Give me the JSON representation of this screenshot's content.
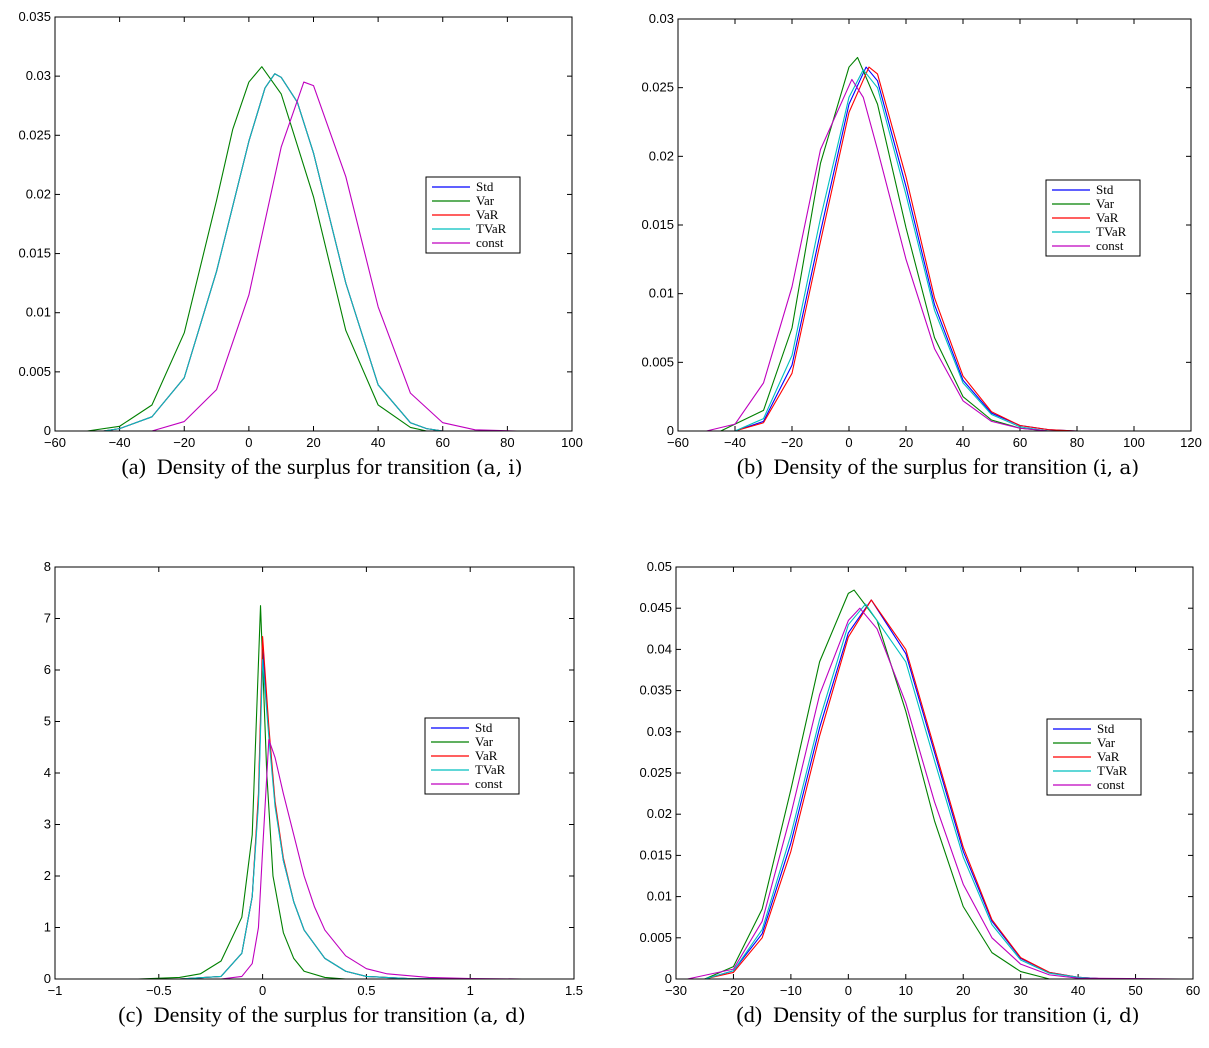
{
  "chart_data": [
    {
      "type": "line",
      "caption": {
        "prefix": "(a)  Density of the surplus for transition ",
        "math": "(a, i)"
      },
      "xlim": [
        -60,
        100
      ],
      "ylim": [
        0,
        0.035
      ],
      "xticks": [
        -60,
        -40,
        -20,
        0,
        20,
        40,
        60,
        80,
        100
      ],
      "xtick_labels": [
        "−60",
        "−40",
        "−20",
        "0",
        "20",
        "40",
        "60",
        "80",
        "100"
      ],
      "yticks": [
        0,
        0.005,
        0.01,
        0.015,
        0.02,
        0.025,
        0.03,
        0.035
      ],
      "ytick_labels": [
        "0",
        "0.005",
        "0.01",
        "0.015",
        "0.02",
        "0.025",
        "0.03",
        "0.035"
      ],
      "legend_position": "right",
      "series": [
        {
          "name": "Std",
          "color": "#0000ff",
          "peak_x": 8,
          "peak_y": 0.0302,
          "x": [
            -45,
            -40,
            -30,
            -20,
            -10,
            0,
            5,
            8,
            10,
            15,
            20,
            30,
            40,
            50,
            55,
            60
          ],
          "y": [
            0,
            0.0002,
            0.0012,
            0.0045,
            0.0135,
            0.0245,
            0.029,
            0.0302,
            0.0299,
            0.0278,
            0.0235,
            0.0125,
            0.0039,
            0.0007,
            0.0002,
            0
          ]
        },
        {
          "name": "Var",
          "color": "#008000",
          "peak_x": 4,
          "peak_y": 0.0308,
          "x": [
            -50,
            -40,
            -30,
            -20,
            -10,
            -5,
            0,
            4,
            10,
            20,
            30,
            40,
            50,
            55
          ],
          "y": [
            0,
            0.0004,
            0.0022,
            0.0083,
            0.0195,
            0.0255,
            0.0295,
            0.0308,
            0.0285,
            0.0198,
            0.0085,
            0.0022,
            0.0003,
            0
          ]
        },
        {
          "name": "VaR",
          "color": "#ff0000",
          "peak_x": 8,
          "peak_y": 0.0302,
          "x": [
            -45,
            -40,
            -30,
            -20,
            -10,
            0,
            5,
            8,
            10,
            15,
            20,
            30,
            40,
            50,
            55,
            60
          ],
          "y": [
            0,
            0.0002,
            0.0012,
            0.0045,
            0.0135,
            0.0245,
            0.029,
            0.0302,
            0.0299,
            0.0278,
            0.0235,
            0.0125,
            0.0039,
            0.0007,
            0.0002,
            0
          ]
        },
        {
          "name": "TVaR",
          "color": "#00bfbf",
          "peak_x": 8,
          "peak_y": 0.0302,
          "x": [
            -45,
            -40,
            -30,
            -20,
            -10,
            0,
            5,
            8,
            10,
            15,
            20,
            30,
            40,
            50,
            55,
            60
          ],
          "y": [
            0,
            0.0002,
            0.0012,
            0.0045,
            0.0135,
            0.0245,
            0.029,
            0.0302,
            0.0299,
            0.0278,
            0.0235,
            0.0125,
            0.0039,
            0.0007,
            0.0002,
            0
          ]
        },
        {
          "name": "const",
          "color": "#bf00bf",
          "peak_x": 17,
          "peak_y": 0.0295,
          "x": [
            -30,
            -20,
            -10,
            0,
            10,
            17,
            20,
            30,
            40,
            50,
            60,
            70,
            83
          ],
          "y": [
            0,
            0.0008,
            0.0035,
            0.0115,
            0.024,
            0.0295,
            0.0292,
            0.0215,
            0.0105,
            0.0032,
            0.0007,
            0.0001,
            0
          ]
        }
      ]
    },
    {
      "type": "line",
      "caption": {
        "prefix": "(b)  Density of the surplus for transition ",
        "math": "(i, a)"
      },
      "xlim": [
        -60,
        120
      ],
      "ylim": [
        0,
        0.03
      ],
      "xticks": [
        -60,
        -40,
        -20,
        0,
        20,
        40,
        60,
        80,
        100,
        120
      ],
      "xtick_labels": [
        "−60",
        "−40",
        "−20",
        "0",
        "20",
        "40",
        "60",
        "80",
        "100",
        "120"
      ],
      "yticks": [
        0,
        0.005,
        0.01,
        0.015,
        0.02,
        0.025,
        0.03
      ],
      "ytick_labels": [
        "0",
        "0.005",
        "0.01",
        "0.015",
        "0.02",
        "0.025",
        "0.03"
      ],
      "legend_position": "right",
      "series": [
        {
          "name": "Std",
          "color": "#0000ff",
          "peak_x": 6,
          "peak_y": 0.0265,
          "x": [
            -40,
            -30,
            -20,
            -10,
            0,
            6,
            10,
            20,
            30,
            40,
            50,
            60,
            70,
            80,
            100,
            107
          ],
          "y": [
            0,
            0.0007,
            0.0048,
            0.0145,
            0.0238,
            0.0265,
            0.0255,
            0.0178,
            0.0092,
            0.0037,
            0.0013,
            0.0004,
            0.0001,
            0,
            0,
            0
          ]
        },
        {
          "name": "Var",
          "color": "#008000",
          "peak_x": 3,
          "peak_y": 0.0272,
          "x": [
            -45,
            -30,
            -20,
            -10,
            0,
            3,
            10,
            20,
            30,
            40,
            50,
            60,
            70
          ],
          "y": [
            0,
            0.0015,
            0.0075,
            0.0195,
            0.0265,
            0.0272,
            0.0238,
            0.0148,
            0.0068,
            0.0025,
            0.0008,
            0.0002,
            0
          ]
        },
        {
          "name": "VaR",
          "color": "#ff0000",
          "peak_x": 7,
          "peak_y": 0.0265,
          "x": [
            -40,
            -30,
            -20,
            -10,
            0,
            7,
            10,
            20,
            30,
            40,
            50,
            60,
            70,
            80
          ],
          "y": [
            0,
            0.0006,
            0.0042,
            0.0138,
            0.0232,
            0.0265,
            0.026,
            0.0185,
            0.0097,
            0.004,
            0.0014,
            0.0004,
            0.0001,
            0
          ]
        },
        {
          "name": "TVaR",
          "color": "#00bfbf",
          "peak_x": 5,
          "peak_y": 0.0263,
          "x": [
            -40,
            -30,
            -20,
            -10,
            0,
            5,
            10,
            20,
            30,
            40,
            50,
            60,
            70
          ],
          "y": [
            0,
            0.0009,
            0.0055,
            0.0155,
            0.0243,
            0.0263,
            0.025,
            0.0172,
            0.0088,
            0.0035,
            0.0012,
            0.0003,
            0
          ]
        },
        {
          "name": "const",
          "color": "#bf00bf",
          "peak_x": 1,
          "peak_y": 0.0256,
          "x": [
            -50,
            -40,
            -30,
            -20,
            -10,
            1,
            5,
            10,
            20,
            30,
            40,
            50,
            60,
            70
          ],
          "y": [
            0,
            0.0005,
            0.0035,
            0.0105,
            0.0205,
            0.0256,
            0.0243,
            0.0205,
            0.0125,
            0.006,
            0.0022,
            0.0007,
            0.0002,
            0
          ]
        }
      ]
    },
    {
      "type": "line",
      "caption": {
        "prefix": "(c)  Density of the surplus for transition ",
        "math": "(a, d)"
      },
      "xlim": [
        -1,
        1.5
      ],
      "ylim": [
        0,
        8
      ],
      "xticks": [
        -1,
        -0.5,
        0,
        0.5,
        1,
        1.5
      ],
      "xtick_labels": [
        "−1",
        "−0.5",
        "0",
        "0.5",
        "1",
        "1.5"
      ],
      "yticks": [
        0,
        1,
        2,
        3,
        4,
        5,
        6,
        7,
        8
      ],
      "ytick_labels": [
        "0",
        "1",
        "2",
        "3",
        "4",
        "5",
        "6",
        "7",
        "8"
      ],
      "legend_position": "right",
      "series": [
        {
          "name": "Std",
          "color": "#0000ff",
          "peak_x": 0.0,
          "peak_y": 6.4,
          "x": [
            -0.4,
            -0.2,
            -0.1,
            -0.05,
            -0.02,
            0.0,
            0.03,
            0.06,
            0.1,
            0.15,
            0.2,
            0.3,
            0.4,
            0.5,
            0.7,
            1.0
          ],
          "y": [
            0,
            0.05,
            0.5,
            1.6,
            3.5,
            6.4,
            4.8,
            3.4,
            2.3,
            1.5,
            0.95,
            0.4,
            0.15,
            0.05,
            0.01,
            0
          ]
        },
        {
          "name": "Var",
          "color": "#008000",
          "peak_x": -0.01,
          "peak_y": 7.25,
          "x": [
            -0.6,
            -0.4,
            -0.3,
            -0.2,
            -0.1,
            -0.05,
            -0.01,
            0.02,
            0.05,
            0.1,
            0.15,
            0.2,
            0.3,
            0.4
          ],
          "y": [
            0,
            0.03,
            0.1,
            0.35,
            1.2,
            2.8,
            7.25,
            4.0,
            2.0,
            0.9,
            0.4,
            0.15,
            0.03,
            0
          ]
        },
        {
          "name": "VaR",
          "color": "#ff0000",
          "peak_x": 0.0,
          "peak_y": 6.65,
          "x": [
            -0.4,
            -0.2,
            -0.1,
            -0.05,
            -0.02,
            0.0,
            0.03,
            0.06,
            0.1,
            0.15,
            0.2,
            0.3,
            0.4,
            0.5,
            0.7,
            1.0
          ],
          "y": [
            0,
            0.05,
            0.5,
            1.6,
            3.6,
            6.65,
            4.9,
            3.45,
            2.35,
            1.5,
            0.95,
            0.4,
            0.15,
            0.05,
            0.01,
            0
          ]
        },
        {
          "name": "TVaR",
          "color": "#00bfbf",
          "peak_x": 0.0,
          "peak_y": 6.2,
          "x": [
            -0.4,
            -0.2,
            -0.1,
            -0.05,
            -0.02,
            0.0,
            0.03,
            0.06,
            0.1,
            0.15,
            0.2,
            0.3,
            0.4,
            0.5,
            0.7,
            1.0
          ],
          "y": [
            0,
            0.05,
            0.5,
            1.6,
            3.4,
            6.2,
            4.7,
            3.35,
            2.3,
            1.5,
            0.95,
            0.4,
            0.15,
            0.05,
            0.01,
            0
          ]
        },
        {
          "name": "const",
          "color": "#bf00bf",
          "peak_x": 0.03,
          "peak_y": 4.65,
          "x": [
            -0.2,
            -0.1,
            -0.05,
            -0.02,
            0.0,
            0.03,
            0.06,
            0.1,
            0.15,
            0.2,
            0.25,
            0.3,
            0.4,
            0.5,
            0.6,
            0.8,
            1.0,
            1.25,
            1.5
          ],
          "y": [
            0,
            0.05,
            0.3,
            1.0,
            2.5,
            4.65,
            4.3,
            3.6,
            2.8,
            2.0,
            1.4,
            0.95,
            0.45,
            0.2,
            0.1,
            0.03,
            0.01,
            0,
            0
          ]
        }
      ]
    },
    {
      "type": "line",
      "caption": {
        "prefix": "(d)  Density of the surplus for transition ",
        "math": "(i, d)"
      },
      "xlim": [
        -30,
        60
      ],
      "ylim": [
        0,
        0.05
      ],
      "xticks": [
        -30,
        -20,
        -10,
        0,
        10,
        20,
        30,
        40,
        50,
        60
      ],
      "xtick_labels": [
        "−30",
        "−20",
        "−10",
        "0",
        "10",
        "20",
        "30",
        "40",
        "50",
        "60"
      ],
      "yticks": [
        0,
        0.005,
        0.01,
        0.015,
        0.02,
        0.025,
        0.03,
        0.035,
        0.04,
        0.045,
        0.05
      ],
      "ytick_labels": [
        "0",
        "0.005",
        "0.01",
        "0.015",
        "0.02",
        "0.025",
        "0.03",
        "0.035",
        "0.04",
        "0.045",
        "0.05"
      ],
      "legend_position": "right",
      "series": [
        {
          "name": "Std",
          "color": "#0000ff",
          "peak_x": 4,
          "peak_y": 0.046,
          "x": [
            -25,
            -20,
            -15,
            -10,
            -5,
            0,
            4,
            10,
            15,
            20,
            25,
            30,
            35,
            40,
            45
          ],
          "y": [
            0,
            0.001,
            0.0055,
            0.0165,
            0.0305,
            0.042,
            0.046,
            0.0395,
            0.0275,
            0.0155,
            0.007,
            0.0025,
            0.0008,
            0.0002,
            0
          ]
        },
        {
          "name": "Var",
          "color": "#008000",
          "peak_x": 1,
          "peak_y": 0.0472,
          "x": [
            -25,
            -20,
            -15,
            -10,
            -5,
            0,
            1,
            5,
            10,
            15,
            20,
            25,
            30,
            35
          ],
          "y": [
            0,
            0.0015,
            0.0085,
            0.023,
            0.0385,
            0.0468,
            0.0472,
            0.0435,
            0.0325,
            0.0192,
            0.0088,
            0.0032,
            0.0009,
            0
          ]
        },
        {
          "name": "VaR",
          "color": "#ff0000",
          "peak_x": 4,
          "peak_y": 0.046,
          "x": [
            -25,
            -20,
            -15,
            -10,
            -5,
            0,
            4,
            10,
            15,
            20,
            25,
            30,
            35,
            40,
            45
          ],
          "y": [
            0,
            0.0008,
            0.005,
            0.0155,
            0.0295,
            0.0415,
            0.046,
            0.04,
            0.028,
            0.016,
            0.0072,
            0.0026,
            0.0008,
            0.0002,
            0
          ]
        },
        {
          "name": "TVaR",
          "color": "#00bfbf",
          "peak_x": 3,
          "peak_y": 0.0455,
          "x": [
            -25,
            -20,
            -15,
            -10,
            -5,
            0,
            3,
            10,
            15,
            20,
            25,
            30,
            35,
            40,
            45
          ],
          "y": [
            0,
            0.001,
            0.006,
            0.0175,
            0.0315,
            0.043,
            0.0455,
            0.0385,
            0.0265,
            0.0148,
            0.0066,
            0.0023,
            0.0007,
            0.0002,
            0
          ]
        },
        {
          "name": "const",
          "color": "#bf00bf",
          "peak_x": 2,
          "peak_y": 0.045,
          "x": [
            -28,
            -20,
            -15,
            -10,
            -5,
            0,
            2,
            5,
            10,
            15,
            20,
            25,
            30,
            35,
            40,
            58
          ],
          "y": [
            0,
            0.0012,
            0.007,
            0.02,
            0.0345,
            0.0435,
            0.045,
            0.0425,
            0.0335,
            0.0215,
            0.0115,
            0.005,
            0.0018,
            0.0005,
            0.0001,
            0
          ]
        }
      ]
    }
  ]
}
